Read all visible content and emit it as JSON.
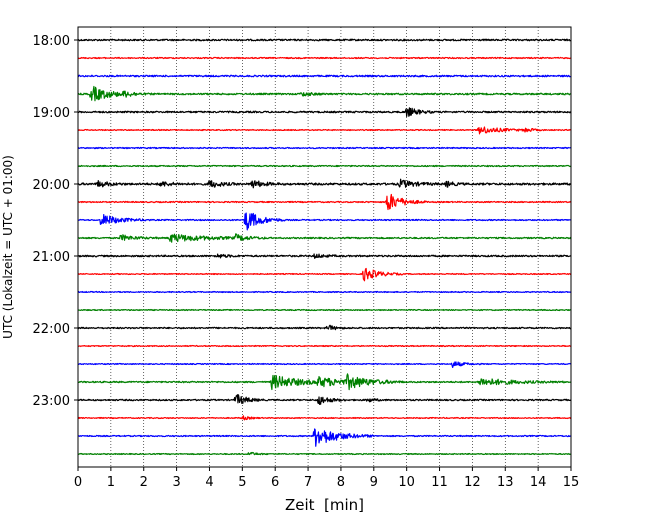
{
  "chart_data": {
    "type": "line",
    "subtype": "helicorder",
    "xlabel": "Zeit  [min]",
    "ylabel": "UTC (Lokalzeit = UTC + 01:00)",
    "xlim": [
      0,
      15
    ],
    "x_ticks": [
      0,
      1,
      2,
      3,
      4,
      5,
      6,
      7,
      8,
      9,
      10,
      11,
      12,
      13,
      14,
      15
    ],
    "x_grid": "vertical dotted",
    "y_tick_labels": [
      "18:00",
      "19:00",
      "20:00",
      "21:00",
      "22:00",
      "23:00"
    ],
    "trace_interval_minutes": 15,
    "trace_colors": [
      "#000000",
      "#ff0000",
      "#0000ff",
      "#008000"
    ],
    "traces": [
      {
        "start": "18:00",
        "color": "#000000",
        "noise": 0.8,
        "events": []
      },
      {
        "start": "18:15",
        "color": "#ff0000",
        "noise": 0.6,
        "events": []
      },
      {
        "start": "18:30",
        "color": "#0000ff",
        "noise": 0.8,
        "events": []
      },
      {
        "start": "18:45",
        "color": "#008000",
        "noise": 0.8,
        "events": [
          {
            "t": 0.4,
            "amp": 8,
            "dur": 0.5
          },
          {
            "t": 1.4,
            "amp": 2,
            "dur": 0.3
          },
          {
            "t": 6.8,
            "amp": 2,
            "dur": 0.3
          }
        ]
      },
      {
        "start": "19:00",
        "color": "#000000",
        "noise": 0.8,
        "events": [
          {
            "t": 10.0,
            "amp": 5,
            "dur": 0.3
          }
        ]
      },
      {
        "start": "19:15",
        "color": "#ff0000",
        "noise": 0.5,
        "events": [
          {
            "t": 12.2,
            "amp": 4,
            "dur": 0.6
          },
          {
            "t": 13.6,
            "amp": 2,
            "dur": 0.2
          }
        ]
      },
      {
        "start": "19:30",
        "color": "#0000ff",
        "noise": 0.6,
        "events": []
      },
      {
        "start": "19:45",
        "color": "#008000",
        "noise": 0.6,
        "events": []
      },
      {
        "start": "20:00",
        "color": "#000000",
        "noise": 1.0,
        "events": [
          {
            "t": 0.6,
            "amp": 3,
            "dur": 0.3
          },
          {
            "t": 2.5,
            "amp": 2.5,
            "dur": 0.3
          },
          {
            "t": 4.0,
            "amp": 4,
            "dur": 0.3
          },
          {
            "t": 5.3,
            "amp": 4,
            "dur": 0.3
          },
          {
            "t": 9.8,
            "amp": 4,
            "dur": 0.4
          },
          {
            "t": 11.2,
            "amp": 3,
            "dur": 0.2
          }
        ]
      },
      {
        "start": "20:15",
        "color": "#ff0000",
        "noise": 0.6,
        "events": [
          {
            "t": 9.4,
            "amp": 10,
            "dur": 0.4
          }
        ]
      },
      {
        "start": "20:30",
        "color": "#0000ff",
        "noise": 0.6,
        "events": [
          {
            "t": 0.7,
            "amp": 6,
            "dur": 0.5
          },
          {
            "t": 5.1,
            "amp": 11,
            "dur": 0.4
          }
        ]
      },
      {
        "start": "20:45",
        "color": "#008000",
        "noise": 0.7,
        "events": [
          {
            "t": 1.3,
            "amp": 3,
            "dur": 0.4
          },
          {
            "t": 2.8,
            "amp": 4,
            "dur": 1.0
          },
          {
            "t": 4.8,
            "amp": 3,
            "dur": 0.3
          }
        ]
      },
      {
        "start": "21:00",
        "color": "#000000",
        "noise": 0.8,
        "events": [
          {
            "t": 4.2,
            "amp": 2,
            "dur": 0.3
          },
          {
            "t": 7.2,
            "amp": 2,
            "dur": 0.3
          }
        ]
      },
      {
        "start": "21:15",
        "color": "#ff0000",
        "noise": 0.5,
        "events": [
          {
            "t": 8.7,
            "amp": 7,
            "dur": 0.4
          }
        ]
      },
      {
        "start": "21:30",
        "color": "#0000ff",
        "noise": 0.5,
        "events": []
      },
      {
        "start": "21:45",
        "color": "#008000",
        "noise": 0.5,
        "events": []
      },
      {
        "start": "22:00",
        "color": "#000000",
        "noise": 0.7,
        "events": [
          {
            "t": 7.6,
            "amp": 3,
            "dur": 0.2
          }
        ]
      },
      {
        "start": "22:15",
        "color": "#ff0000",
        "noise": 0.5,
        "events": []
      },
      {
        "start": "22:30",
        "color": "#0000ff",
        "noise": 0.5,
        "events": [
          {
            "t": 11.4,
            "amp": 3,
            "dur": 0.3
          }
        ]
      },
      {
        "start": "22:45",
        "color": "#008000",
        "noise": 0.7,
        "events": [
          {
            "t": 5.9,
            "amp": 7,
            "dur": 0.8
          },
          {
            "t": 7.3,
            "amp": 4,
            "dur": 0.8
          },
          {
            "t": 8.2,
            "amp": 6,
            "dur": 0.6
          },
          {
            "t": 12.2,
            "amp": 4,
            "dur": 0.9
          }
        ]
      },
      {
        "start": "23:00",
        "color": "#000000",
        "noise": 0.7,
        "events": [
          {
            "t": 4.8,
            "amp": 6,
            "dur": 0.3
          },
          {
            "t": 7.3,
            "amp": 5,
            "dur": 0.3
          },
          {
            "t": 8.8,
            "amp": 2,
            "dur": 0.2
          }
        ]
      },
      {
        "start": "23:15",
        "color": "#ff0000",
        "noise": 0.5,
        "events": [
          {
            "t": 5.0,
            "amp": 2,
            "dur": 0.2
          }
        ]
      },
      {
        "start": "23:30",
        "color": "#0000ff",
        "noise": 0.6,
        "events": [
          {
            "t": 7.2,
            "amp": 11,
            "dur": 0.6
          }
        ]
      },
      {
        "start": "23:45",
        "color": "#008000",
        "noise": 0.5,
        "events": [
          {
            "t": 5.2,
            "amp": 2,
            "dur": 0.2
          }
        ]
      }
    ]
  }
}
